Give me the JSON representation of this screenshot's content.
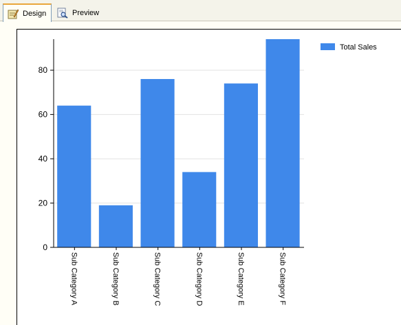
{
  "tabs": [
    {
      "label": "Design",
      "icon": "design-pencil-icon",
      "active": true
    },
    {
      "label": "Preview",
      "icon": "preview-magnifier-icon",
      "active": false
    }
  ],
  "colors": {
    "bar": "#3f88ea",
    "tab_accent": "#e9a63a",
    "background": "#fffef6"
  },
  "chart_data": {
    "type": "bar",
    "categories": [
      "Sub Category A",
      "Sub Category B",
      "Sub Category C",
      "Sub Category D",
      "Sub Category E",
      "Sub Category F"
    ],
    "series": [
      {
        "name": "Total Sales",
        "values": [
          64,
          19,
          76,
          34,
          74,
          94
        ]
      }
    ],
    "ylim": [
      0,
      94
    ],
    "yticks": [
      0,
      20,
      40,
      60,
      80
    ],
    "title": "",
    "xlabel": "",
    "ylabel": "",
    "grid": true,
    "legend_position": "top-right"
  }
}
